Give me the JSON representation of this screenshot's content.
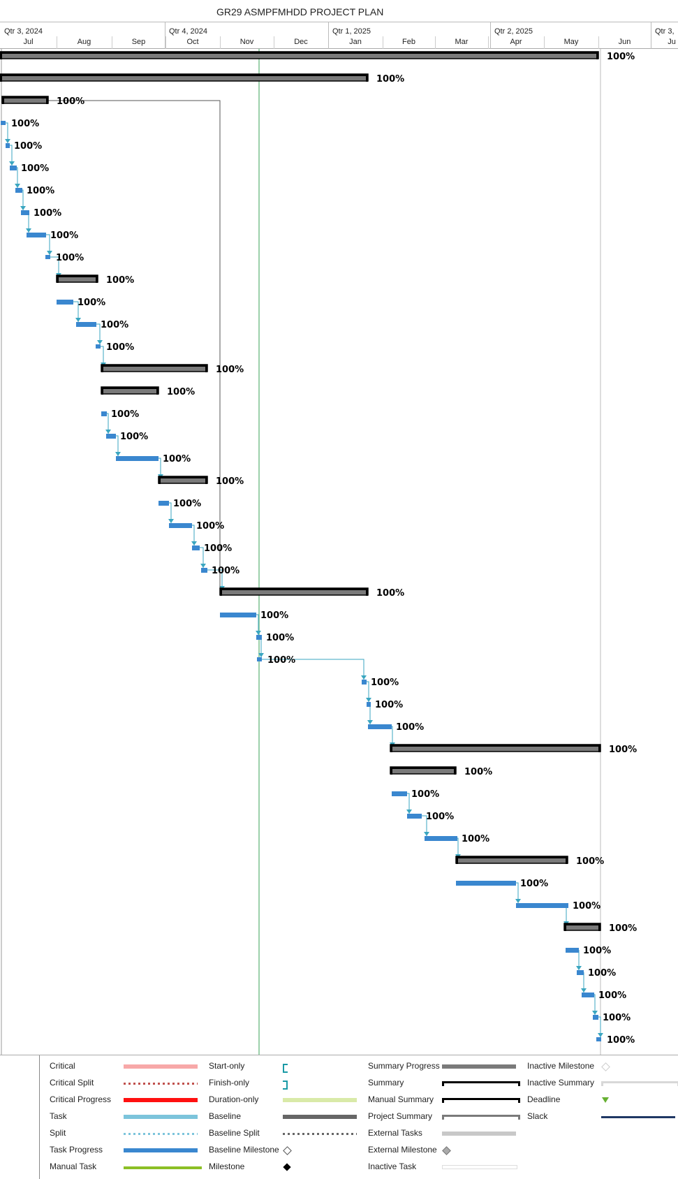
{
  "title": "GR29 ASMPFMHDD PROJECT PLAN",
  "quarters": [
    "Qtr 3, 2024",
    "Qtr 4, 2024",
    "Qtr 1, 2025",
    "Qtr 2, 2025",
    "Qtr 3,"
  ],
  "months": [
    "Jul",
    "Aug",
    "Sep",
    "Oct",
    "Nov",
    "Dec",
    "Jan",
    "Feb",
    "Mar",
    "Apr",
    "May",
    "Jun",
    "Ju"
  ],
  "rows": [
    {
      "type": "project-summary",
      "start": 0,
      "end": 857,
      "label": "100%"
    },
    {
      "type": "summary",
      "start": 0,
      "end": 527,
      "label": "100%"
    },
    {
      "type": "summary",
      "start": 3,
      "end": 69,
      "label": "100%"
    },
    {
      "type": "milestone",
      "start": 4,
      "end": 4,
      "label": "100%"
    },
    {
      "type": "task",
      "start": 8,
      "end": 14,
      "label": "100%"
    },
    {
      "type": "task",
      "start": 14,
      "end": 24,
      "label": "100%"
    },
    {
      "type": "task",
      "start": 22,
      "end": 32,
      "label": "100%"
    },
    {
      "type": "task",
      "start": 30,
      "end": 42,
      "label": "100%"
    },
    {
      "type": "task",
      "start": 38,
      "end": 66,
      "label": "100%"
    },
    {
      "type": "milestone",
      "start": 68,
      "end": 68,
      "label": "100%"
    },
    {
      "type": "summary",
      "start": 81,
      "end": 140,
      "label": "100%"
    },
    {
      "type": "task",
      "start": 81,
      "end": 105,
      "label": "100%"
    },
    {
      "type": "task",
      "start": 109,
      "end": 138,
      "label": "100%"
    },
    {
      "type": "milestone",
      "start": 140,
      "end": 140,
      "label": "100%"
    },
    {
      "type": "summary",
      "start": 145,
      "end": 297,
      "label": "100%"
    },
    {
      "type": "summary",
      "start": 145,
      "end": 227,
      "label": "100%"
    },
    {
      "type": "task",
      "start": 145,
      "end": 153,
      "label": "100%"
    },
    {
      "type": "task",
      "start": 152,
      "end": 166,
      "label": "100%"
    },
    {
      "type": "task",
      "start": 166,
      "end": 227,
      "label": "100%"
    },
    {
      "type": "summary",
      "start": 227,
      "end": 297,
      "label": "100%"
    },
    {
      "type": "task",
      "start": 227,
      "end": 242,
      "label": "100%"
    },
    {
      "type": "task",
      "start": 242,
      "end": 275,
      "label": "100%"
    },
    {
      "type": "task",
      "start": 275,
      "end": 286,
      "label": "100%"
    },
    {
      "type": "task",
      "start": 288,
      "end": 297,
      "label": "100%"
    },
    {
      "type": "summary",
      "start": 315,
      "end": 527,
      "label": "100%"
    },
    {
      "type": "task",
      "start": 315,
      "end": 367,
      "label": "100%"
    },
    {
      "type": "task",
      "start": 367,
      "end": 375,
      "label": "100%"
    },
    {
      "type": "milestone",
      "start": 371,
      "end": 371,
      "label": "100%"
    },
    {
      "type": "task",
      "start": 518,
      "end": 525,
      "label": "100%"
    },
    {
      "type": "task",
      "start": 525,
      "end": 531,
      "label": "100%"
    },
    {
      "type": "task",
      "start": 527,
      "end": 561,
      "label": "100%"
    },
    {
      "type": "summary",
      "start": 559,
      "end": 860,
      "label": "100%"
    },
    {
      "type": "summary",
      "start": 559,
      "end": 653,
      "label": "100%"
    },
    {
      "type": "task",
      "start": 561,
      "end": 583,
      "label": "100%"
    },
    {
      "type": "task",
      "start": 583,
      "end": 604,
      "label": "100%"
    },
    {
      "type": "task",
      "start": 608,
      "end": 655,
      "label": "100%"
    },
    {
      "type": "summary",
      "start": 653,
      "end": 813,
      "label": "100%"
    },
    {
      "type": "task",
      "start": 653,
      "end": 739,
      "label": "100%"
    },
    {
      "type": "task",
      "start": 739,
      "end": 814,
      "label": "100%"
    },
    {
      "type": "summary",
      "start": 808,
      "end": 860,
      "label": "100%"
    },
    {
      "type": "task",
      "start": 810,
      "end": 829,
      "label": "100%"
    },
    {
      "type": "task",
      "start": 826,
      "end": 836,
      "label": "100%"
    },
    {
      "type": "task",
      "start": 833,
      "end": 851,
      "label": "100%"
    },
    {
      "type": "task",
      "start": 849,
      "end": 857,
      "label": "100%"
    },
    {
      "type": "milestone",
      "start": 857,
      "end": 857,
      "label": "100%"
    }
  ],
  "legend": [
    {
      "name": "Critical",
      "swatch": "critical"
    },
    {
      "name": "Critical Split",
      "swatch": "critical-split"
    },
    {
      "name": "Critical Progress",
      "swatch": "critical-progress"
    },
    {
      "name": "Task",
      "swatch": "task"
    },
    {
      "name": "Split",
      "swatch": "split"
    },
    {
      "name": "Task Progress",
      "swatch": "task-progress"
    },
    {
      "name": "Manual Task",
      "swatch": "manual-task"
    },
    {
      "name": "Start-only",
      "swatch": "start-only"
    },
    {
      "name": "Finish-only",
      "swatch": "finish-only"
    },
    {
      "name": "Duration-only",
      "swatch": "duration-only"
    },
    {
      "name": "Baseline",
      "swatch": "baseline"
    },
    {
      "name": "Baseline Split",
      "swatch": "baseline-split"
    },
    {
      "name": "Baseline Milestone",
      "swatch": "baseline-milestone"
    },
    {
      "name": "Milestone",
      "swatch": "milestone"
    },
    {
      "name": "Summary Progress",
      "swatch": "summary-progress"
    },
    {
      "name": "Summary",
      "swatch": "summary"
    },
    {
      "name": "Manual Summary",
      "swatch": "manual-summary"
    },
    {
      "name": "Project Summary",
      "swatch": "project-summary"
    },
    {
      "name": "External Tasks",
      "swatch": "external-tasks"
    },
    {
      "name": "External Milestone",
      "swatch": "external-milestone"
    },
    {
      "name": "Inactive Task",
      "swatch": "inactive-task"
    },
    {
      "name": "Inactive Milestone",
      "swatch": "inactive-milestone"
    },
    {
      "name": "Inactive Summary",
      "swatch": "inactive-summary"
    },
    {
      "name": "Deadline",
      "swatch": "deadline"
    },
    {
      "name": "Slack",
      "swatch": "slack"
    }
  ],
  "colors": {
    "task": "#3a87cf",
    "task_link": "#3aa6c0",
    "summary": "#7a7a7a",
    "today": "#7cc28f",
    "critical": "#f7a8a8",
    "critical_split": "#c0504d",
    "critical_progress": "#ff1010",
    "task_legend": "#7cc4db",
    "manual": "#8cbf26",
    "duration": "#d9eaa8",
    "baseline": "#666666",
    "external": "#c8c8c8",
    "deadline": "#66b032",
    "slack": "#1f3864"
  }
}
